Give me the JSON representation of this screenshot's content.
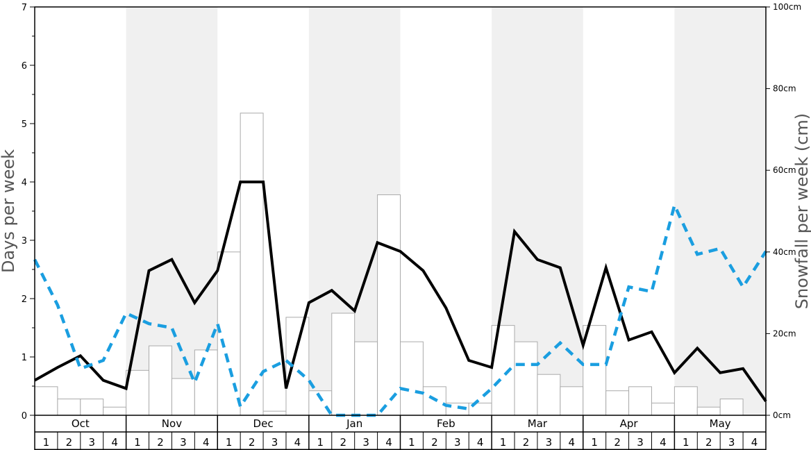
{
  "chart_data": {
    "type": "bar+line",
    "months": [
      "Oct",
      "Nov",
      "Dec",
      "Jan",
      "Feb",
      "Mar",
      "Apr",
      "May"
    ],
    "weeks_per_month": [
      "1",
      "2",
      "3",
      "4"
    ],
    "ylabel_left": "Days per week",
    "ylabel_right": "Snowfall per week (cm)",
    "ylim_left": [
      0,
      7
    ],
    "ylim_right": [
      0,
      100
    ],
    "left_ticks": [
      "0",
      "1",
      "2",
      "3",
      "4",
      "5",
      "6",
      "7"
    ],
    "right_ticks": [
      "0cm",
      "20cm",
      "40cm",
      "60cm",
      "80cm",
      "100cm"
    ],
    "grid": false,
    "shaded_months": [
      "Nov",
      "Jan",
      "Mar",
      "May"
    ],
    "series": [
      {
        "kind": "bar",
        "axis": "right",
        "units": "cm",
        "values": [
          7,
          4,
          4,
          2,
          11,
          17,
          9,
          16,
          40,
          74,
          1,
          24,
          6,
          25,
          18,
          54,
          18,
          7,
          3,
          3,
          22,
          18,
          10,
          7,
          22,
          6,
          7,
          3,
          7,
          2,
          4,
          0
        ],
        "color": "#ffffff",
        "stroke": "#aaaaaa"
      },
      {
        "kind": "line",
        "axis": "left",
        "style": "solid",
        "color": "#000000",
        "values": [
          0.6,
          0.82,
          1.02,
          0.6,
          0.46,
          2.48,
          2.67,
          1.93,
          2.48,
          4.0,
          4.0,
          0.46,
          1.93,
          2.14,
          1.79,
          2.96,
          2.81,
          2.48,
          1.84,
          0.94,
          0.82,
          3.15,
          2.67,
          2.53,
          1.2,
          2.53,
          1.29,
          1.43,
          0.73,
          1.15,
          0.73,
          0.8,
          0.24
        ]
      },
      {
        "kind": "line",
        "axis": "left",
        "style": "dashed",
        "color": "#1a9ee0",
        "values": [
          2.67,
          1.89,
          0.8,
          0.94,
          1.75,
          1.57,
          1.5,
          0.56,
          1.57,
          0.15,
          0.75,
          0.94,
          0.6,
          0.0,
          0.0,
          0.0,
          0.46,
          0.38,
          0.17,
          0.11,
          0.46,
          0.87,
          0.87,
          1.24,
          0.87,
          0.87,
          2.2,
          2.12,
          3.6,
          2.76,
          2.86,
          2.2,
          2.81
        ]
      }
    ]
  }
}
